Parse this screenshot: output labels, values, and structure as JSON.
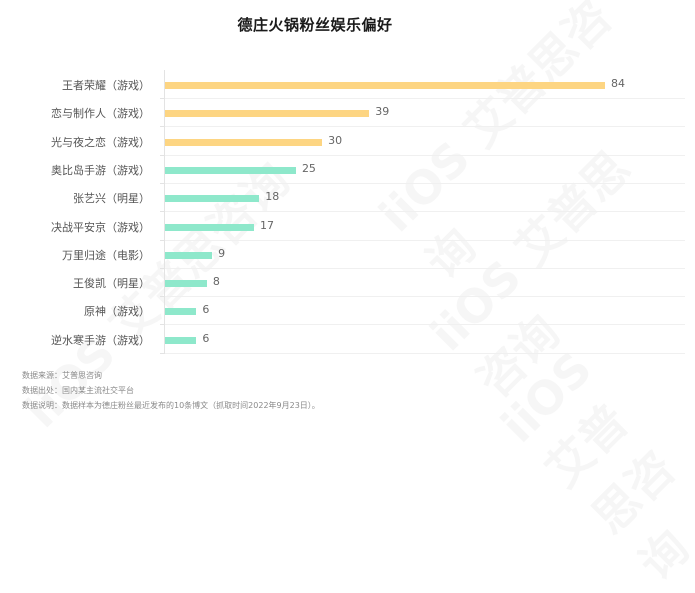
{
  "chart_data": {
    "type": "bar",
    "orientation": "horizontal",
    "title": "德庄火锅粉丝娱乐偏好",
    "xlabel": "",
    "ylabel": "",
    "xlim": [
      0,
      84
    ],
    "grid": true,
    "legend": null,
    "categories": [
      "王者荣耀（游戏）",
      "恋与制作人（游戏）",
      "光与夜之恋（游戏）",
      "奥比岛手游（游戏）",
      "张艺兴（明星）",
      "决战平安京（游戏）",
      "万里归途（电影）",
      "王俊凯（明星）",
      "原神（游戏）",
      "逆水寒手游（游戏）"
    ],
    "values": [
      84,
      39,
      30,
      25,
      18,
      17,
      9,
      8,
      6,
      6
    ],
    "bar_colors": [
      "#FDD582",
      "#FDD582",
      "#FDD582",
      "#8EE8CB",
      "#8EE8CB",
      "#8EE8CB",
      "#8EE8CB",
      "#8EE8CB",
      "#8EE8CB",
      "#8EE8CB"
    ]
  },
  "rows": [
    {
      "label": "王者荣耀（游戏）",
      "value": "84"
    },
    {
      "label": "恋与制作人（游戏）",
      "value": "39"
    },
    {
      "label": "光与夜之恋（游戏）",
      "value": "30"
    },
    {
      "label": "奥比岛手游（游戏）",
      "value": "25"
    },
    {
      "label": "张艺兴（明星）",
      "value": "18"
    },
    {
      "label": "决战平安京（游戏）",
      "value": "17"
    },
    {
      "label": "万里归途（电影）",
      "value": "9"
    },
    {
      "label": "王俊凯（明星）",
      "value": "8"
    },
    {
      "label": "原神（游戏）",
      "value": "6"
    },
    {
      "label": "逆水寒手游（游戏）",
      "value": "6"
    }
  ],
  "notes": {
    "source": "数据来源：艾普思咨询",
    "origin": "数据出处：国内某主流社交平台",
    "description": "数据说明：数据样本为德庄粉丝最近发布的10条博文（抓取时间2022年9月23日）。"
  },
  "watermark": "iiOS 艾普思咨询",
  "colors": {
    "highlight": "#FDD582",
    "normal": "#8EE8CB"
  }
}
